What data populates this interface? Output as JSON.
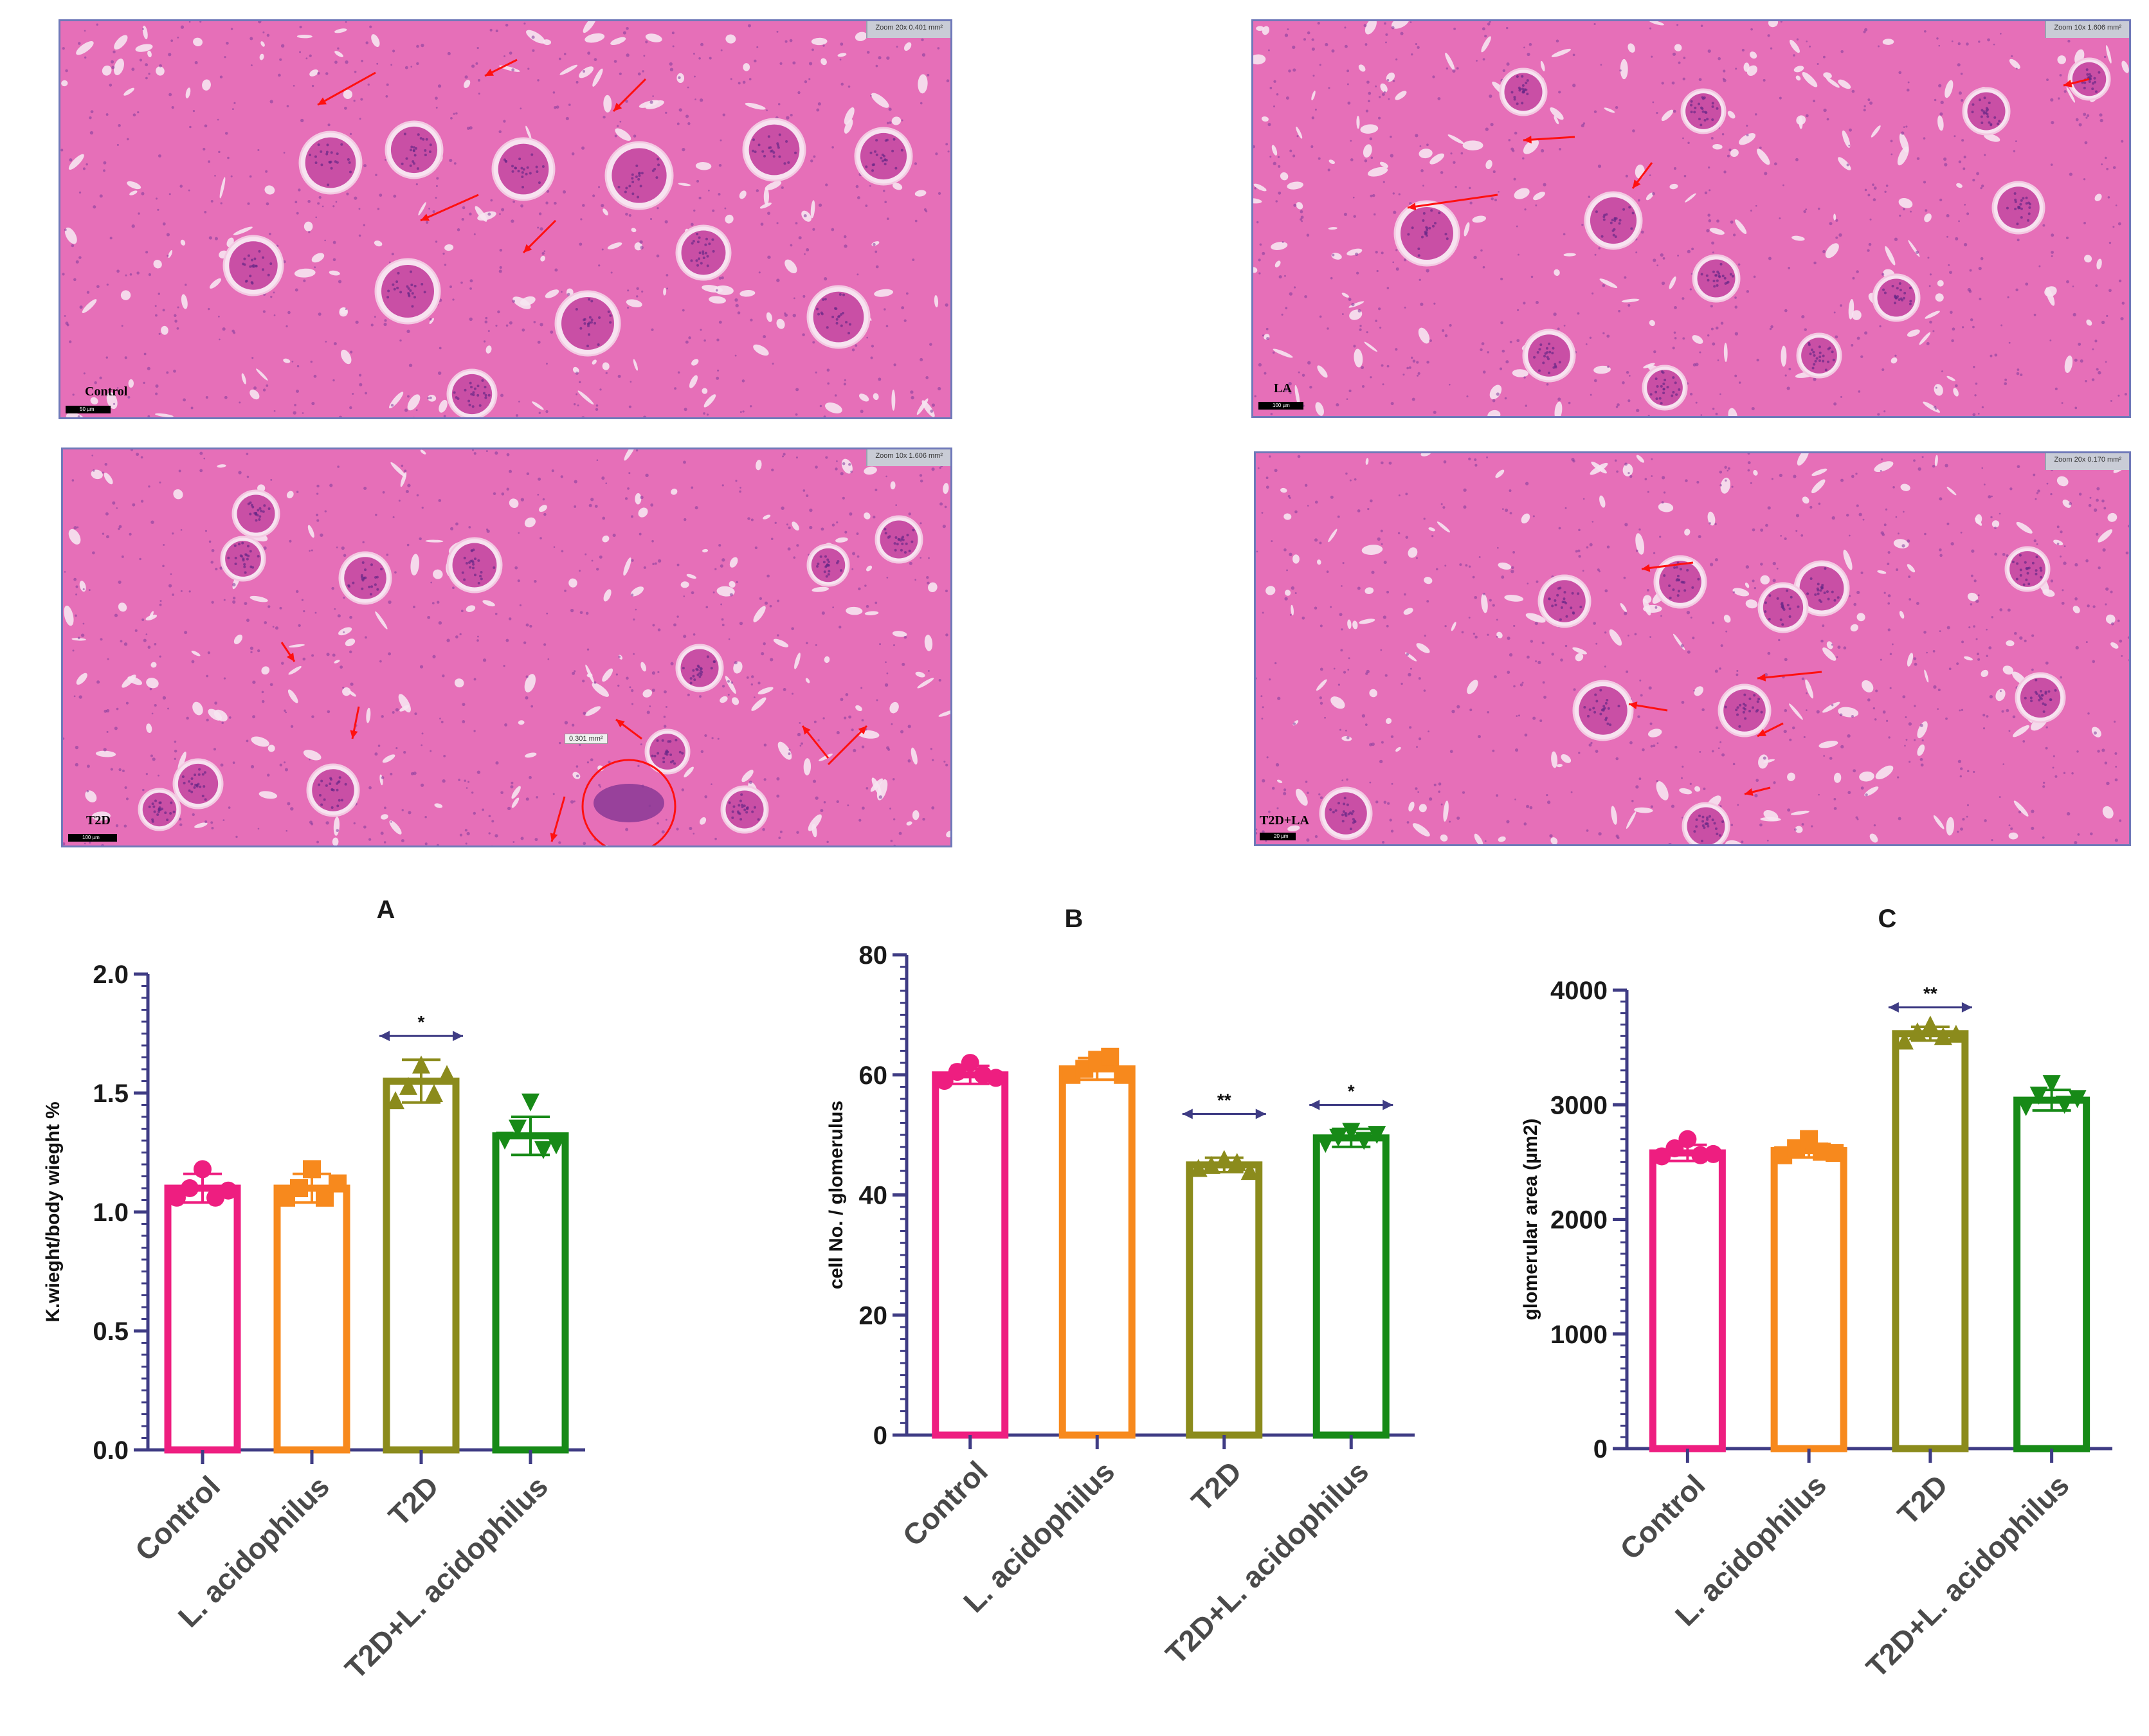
{
  "micrographs": [
    {
      "id": "control",
      "label": "Control",
      "zoom_text": "Zoom 20x   0.401 mm²",
      "scale_text": "50 µm",
      "seed": 3
    },
    {
      "id": "la",
      "label": "LA",
      "zoom_text": "Zoom 10x   1.606 mm²",
      "scale_text": "100 µm",
      "seed": 7
    },
    {
      "id": "t2d",
      "label": "T2D",
      "zoom_text": "Zoom 10x   1.606 mm²",
      "scale_text": "100 µm",
      "seed": 11,
      "circle_note": "0.301 mm²"
    },
    {
      "id": "t2dla",
      "label": "T2D+LA",
      "zoom_text": "Zoom 20x   0.170 mm²",
      "scale_text": "20 µm",
      "seed": 17
    }
  ],
  "chart_data": [
    {
      "panel": "A",
      "type": "bar",
      "title": "A",
      "ylabel": "K.wieght/body wieght %",
      "ylim": [
        0,
        2.0
      ],
      "yticks": [
        0,
        0.5,
        1.0,
        1.5,
        2.0
      ],
      "ytick_labels": [
        "0.0",
        "0.5",
        "1.0",
        "1.5",
        "2.0"
      ],
      "categories": [
        "Control",
        "L. acidophilus",
        "T2D",
        "T2D+L. acidophilus"
      ],
      "values": [
        1.1,
        1.1,
        1.55,
        1.32
      ],
      "errors": [
        0.06,
        0.06,
        0.09,
        0.08
      ],
      "points": [
        [
          1.06,
          1.1,
          1.18,
          1.06,
          1.09
        ],
        [
          1.06,
          1.1,
          1.18,
          1.06,
          1.12
        ],
        [
          1.47,
          1.53,
          1.62,
          1.5,
          1.58
        ],
        [
          1.3,
          1.35,
          1.46,
          1.26,
          1.28
        ]
      ],
      "colors": [
        "#ee1e80",
        "#f7891d",
        "#8b8b1c",
        "#178a17"
      ],
      "markers": [
        "circle",
        "square",
        "triangle-up",
        "triangle-down"
      ],
      "significance": [
        {
          "from": 2,
          "to": 2,
          "label": "*",
          "y": 1.74
        }
      ]
    },
    {
      "panel": "B",
      "type": "bar",
      "title": "B",
      "ylabel": "cell No. / glomerulus",
      "ylim": [
        0,
        80
      ],
      "yticks": [
        0,
        20,
        40,
        60,
        80
      ],
      "ytick_labels": [
        "0",
        "20",
        "40",
        "60",
        "80"
      ],
      "categories": [
        "Control",
        "L. acidophilus",
        "T2D",
        "T2D+L. acidophilus"
      ],
      "values": [
        60,
        61,
        45,
        49.5
      ],
      "errors": [
        1.5,
        1.8,
        1.2,
        1.5
      ],
      "points": [
        [
          59,
          60.5,
          62,
          60,
          59.5
        ],
        [
          60,
          61,
          62.5,
          63,
          60
        ],
        [
          44.5,
          45,
          46,
          45.5,
          44
        ],
        [
          48.5,
          49.5,
          50.5,
          49,
          50
        ]
      ],
      "colors": [
        "#ee1e80",
        "#f7891d",
        "#8b8b1c",
        "#178a17"
      ],
      "markers": [
        "circle",
        "square",
        "triangle-up",
        "triangle-down"
      ],
      "significance": [
        {
          "from": 2,
          "to": 2,
          "label": "**",
          "y": 53.5
        },
        {
          "from": 3,
          "to": 3,
          "label": "*",
          "y": 55
        }
      ]
    },
    {
      "panel": "C",
      "type": "bar",
      "title": "C",
      "ylabel": "glomerular area (µm2)",
      "ylim": [
        0,
        4000
      ],
      "yticks": [
        0,
        1000,
        2000,
        3000,
        4000
      ],
      "ytick_labels": [
        "0",
        "1000",
        "2000",
        "3000",
        "4000"
      ],
      "categories": [
        "Control",
        "L. acidophilus",
        "T2D",
        "T2D+L. acidophilus"
      ],
      "values": [
        2580,
        2600,
        3620,
        3040
      ],
      "errors": [
        70,
        60,
        60,
        90
      ],
      "points": [
        [
          2550,
          2620,
          2700,
          2560,
          2570
        ],
        [
          2560,
          2620,
          2700,
          2590,
          2580
        ],
        [
          3560,
          3640,
          3700,
          3600,
          3620
        ],
        [
          2980,
          3080,
          3180,
          3000,
          3050
        ]
      ],
      "colors": [
        "#ee1e80",
        "#f7891d",
        "#8b8b1c",
        "#178a17"
      ],
      "markers": [
        "circle",
        "square",
        "triangle-up",
        "triangle-down"
      ],
      "significance": [
        {
          "from": 2,
          "to": 2,
          "label": "**",
          "y": 3850
        }
      ]
    }
  ]
}
